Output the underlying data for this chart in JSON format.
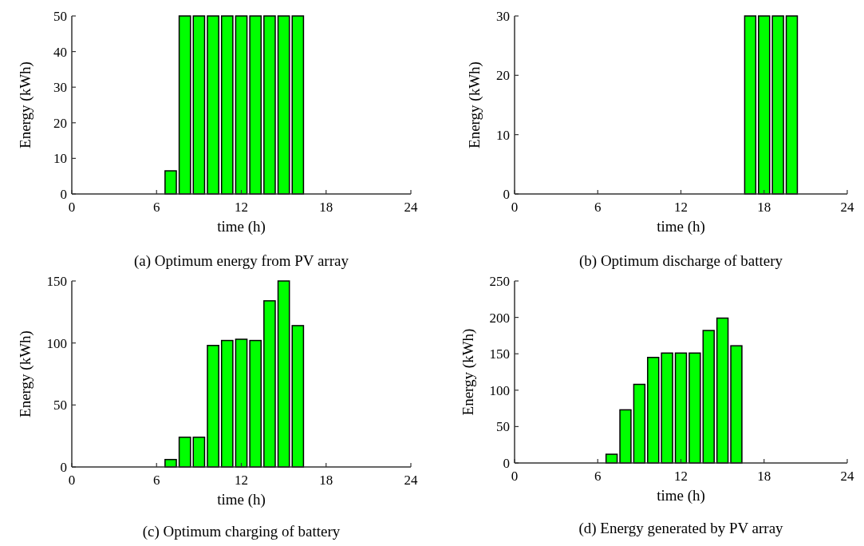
{
  "chart_data": [
    {
      "type": "bar",
      "title": "(a) Optimum energy from PV array",
      "xlabel": "time (h)",
      "ylabel": "Energy (kWh)",
      "x": [
        7,
        8,
        9,
        10,
        11,
        12,
        13,
        14,
        15,
        16
      ],
      "values": [
        6.5,
        50,
        50,
        50,
        50,
        50,
        50,
        50,
        50,
        50
      ],
      "color": "#00ff00",
      "xlim": [
        0,
        24
      ],
      "xticks": [
        0,
        6,
        12,
        18,
        24
      ],
      "ylim": [
        0,
        50
      ],
      "yticks": [
        0,
        10,
        20,
        30,
        40,
        50
      ]
    },
    {
      "type": "bar",
      "title": "(b) Optimum discharge of battery",
      "xlabel": "time (h)",
      "ylabel": "Energy (kWh)",
      "x": [
        17,
        18,
        19,
        20
      ],
      "values": [
        30,
        30,
        30,
        30
      ],
      "color": "#00ff00",
      "xlim": [
        0,
        24
      ],
      "xticks": [
        0,
        6,
        12,
        18,
        24
      ],
      "ylim": [
        0,
        30
      ],
      "yticks": [
        0,
        10,
        20,
        30
      ]
    },
    {
      "type": "bar",
      "title": "(c) Optimum charging of battery",
      "xlabel": "time (h)",
      "ylabel": "Energy (kWh)",
      "x": [
        7,
        8,
        9,
        10,
        11,
        12,
        13,
        14,
        15,
        16
      ],
      "values": [
        6,
        24,
        24,
        98,
        102,
        103,
        102,
        134,
        150,
        114
      ],
      "color": "#00ff00",
      "xlim": [
        0,
        24
      ],
      "xticks": [
        0,
        6,
        12,
        18,
        24
      ],
      "ylim": [
        0,
        150
      ],
      "yticks": [
        0,
        50,
        100,
        150
      ]
    },
    {
      "type": "bar",
      "title": "(d) Energy generated by PV array",
      "xlabel": "time (h)",
      "ylabel": "Energy (kWh)",
      "x": [
        7,
        8,
        9,
        10,
        11,
        12,
        13,
        14,
        15,
        16
      ],
      "values": [
        12,
        73,
        108,
        145,
        151,
        151,
        151,
        182,
        199,
        161
      ],
      "color": "#00ff00",
      "xlim": [
        0,
        24
      ],
      "xticks": [
        0,
        6,
        12,
        18,
        24
      ],
      "ylim": [
        0,
        250
      ],
      "yticks": [
        0,
        50,
        100,
        150,
        200,
        250
      ]
    }
  ]
}
